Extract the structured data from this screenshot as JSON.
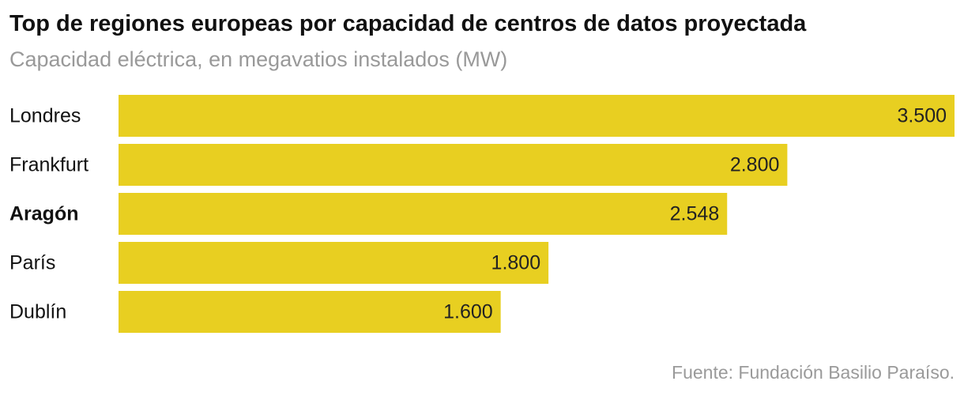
{
  "chart_data": {
    "type": "bar",
    "orientation": "horizontal",
    "title": "Top de regiones europeas por capacidad de centros de datos proyectada",
    "subtitle": "Capacidad eléctrica, en megavatios instalados (MW)",
    "categories": [
      "Londres",
      "Frankfurt",
      "Aragón",
      "París",
      "Dublín"
    ],
    "values": [
      3500,
      2800,
      2548,
      1800,
      1600
    ],
    "value_labels": [
      "3.500",
      "2.800",
      "2.548",
      "1.800",
      "1.600"
    ],
    "highlight": "Aragón",
    "xlim": [
      0,
      3500
    ],
    "bar_color": "#e8cf21",
    "grid": false,
    "source": "Fuente: Fundación Basilio Paraíso."
  }
}
